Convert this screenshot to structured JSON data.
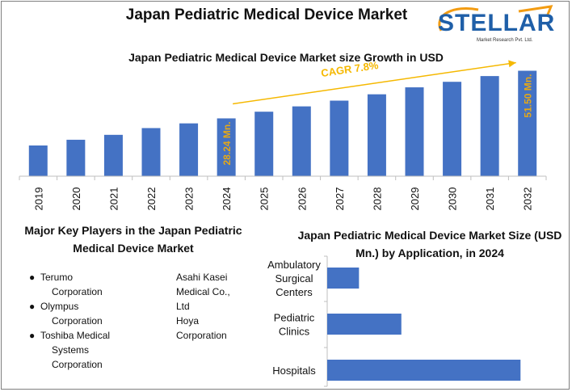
{
  "title": "Japan Pediatric Medical Device Market",
  "logo": {
    "name": "STELLAR",
    "tagline": "Market Research Pvt. Ltd.",
    "colors": {
      "blue": "#1f5fa8",
      "orange": "#f39c12"
    }
  },
  "colors": {
    "bar": "#4472c4",
    "bar_label": "#e6a817",
    "arrow": "#f5b800",
    "cagr": "#f5b800"
  },
  "players": {
    "title": "Major Key Players in the Japan Pediatric Medical Device Market",
    "col1": [
      {
        "line1": "Terumo",
        "line2": "Corporation"
      },
      {
        "line1": "Olympus",
        "line2": "Corporation"
      },
      {
        "line1": "Toshiba Medical",
        "line2": "Systems",
        "line3": "Corporation"
      }
    ],
    "col2": [
      "Asahi Kasei",
      "Medical Co.,",
      "Ltd",
      "Hoya",
      "Corporation"
    ]
  },
  "chart_data": [
    {
      "type": "bar",
      "title": "Japan Pediatric Medical Device Market size Growth in USD",
      "categories": [
        "2019",
        "2020",
        "2021",
        "2022",
        "2023",
        "2024",
        "2025",
        "2026",
        "2027",
        "2028",
        "2029",
        "2030",
        "2031",
        "2032"
      ],
      "values": [
        15.0,
        17.8,
        20.2,
        23.5,
        25.8,
        28.24,
        31.5,
        34.1,
        36.9,
        40.0,
        43.4,
        46.1,
        48.9,
        51.5
      ],
      "data_labels": {
        "2024": "28.24 Mn.",
        "2032": "51.50 Mn."
      },
      "annotation": "CAGR 7.8%",
      "ylim": [
        0,
        60
      ],
      "grid": false
    },
    {
      "type": "bar",
      "orientation": "horizontal",
      "title": "Japan Pediatric Medical Device Market Size (USD Mn.) by Application, in 2024",
      "categories": [
        "Ambulatory Surgical Centers",
        "Pediatric Clinics",
        "Hospitals"
      ],
      "category_lines": [
        [
          "Ambulatory",
          "Surgical",
          "Centers"
        ],
        [
          "Pediatric",
          "Clinics"
        ],
        [
          "Hospitals"
        ]
      ],
      "values": [
        2.4,
        5.6,
        14.6
      ],
      "xlim": [
        0,
        18
      ],
      "grid": false
    }
  ]
}
